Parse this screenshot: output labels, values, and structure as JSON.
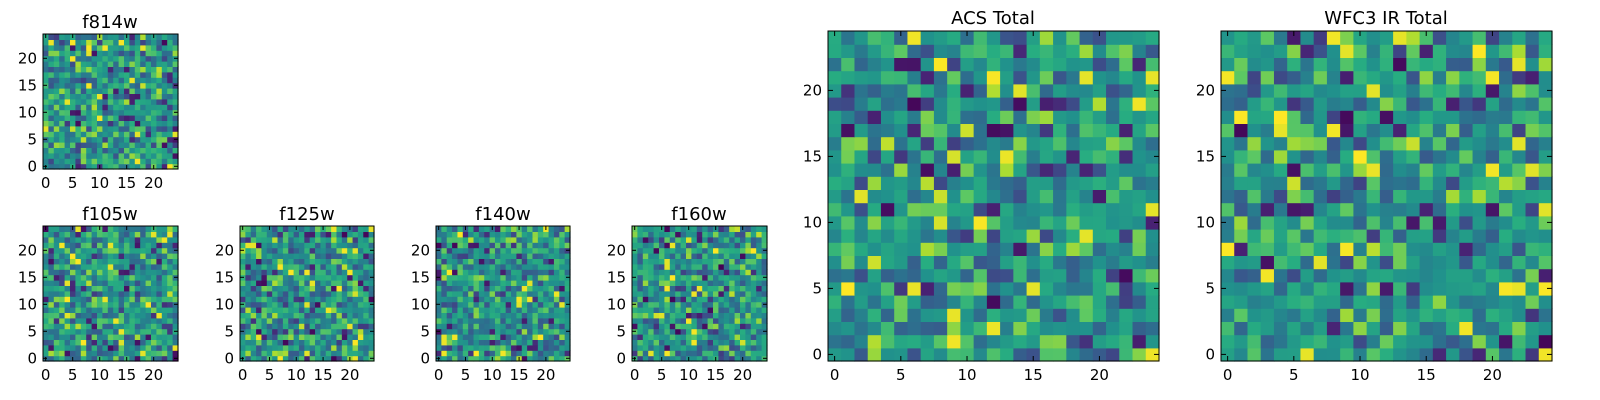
{
  "chart_data": [
    {
      "type": "heatmap",
      "title": "f814w",
      "xticks": [
        "0",
        "5",
        "10",
        "15",
        "20"
      ],
      "yticks": [
        "0",
        "5",
        "10",
        "15",
        "20"
      ],
      "xlim": [
        0,
        25
      ],
      "ylim": [
        0,
        25
      ],
      "colormap": "viridis",
      "grid": false
    },
    {
      "type": "heatmap",
      "title": "f105w",
      "xticks": [
        "0",
        "5",
        "10",
        "15",
        "20"
      ],
      "yticks": [
        "0",
        "5",
        "10",
        "15",
        "20"
      ],
      "xlim": [
        0,
        25
      ],
      "ylim": [
        0,
        25
      ],
      "colormap": "viridis",
      "grid": false
    },
    {
      "type": "heatmap",
      "title": "f125w",
      "xticks": [
        "0",
        "5",
        "10",
        "15",
        "20"
      ],
      "yticks": [
        "0",
        "5",
        "10",
        "15",
        "20"
      ],
      "xlim": [
        0,
        25
      ],
      "ylim": [
        0,
        25
      ],
      "colormap": "viridis",
      "grid": false
    },
    {
      "type": "heatmap",
      "title": "f140w",
      "xticks": [
        "0",
        "5",
        "10",
        "15",
        "20"
      ],
      "yticks": [
        "0",
        "5",
        "10",
        "15",
        "20"
      ],
      "xlim": [
        0,
        25
      ],
      "ylim": [
        0,
        25
      ],
      "colormap": "viridis",
      "grid": false
    },
    {
      "type": "heatmap",
      "title": "f160w",
      "xticks": [
        "0",
        "5",
        "10",
        "15",
        "20"
      ],
      "yticks": [
        "0",
        "5",
        "10",
        "15",
        "20"
      ],
      "xlim": [
        0,
        25
      ],
      "ylim": [
        0,
        25
      ],
      "colormap": "viridis",
      "grid": false
    },
    {
      "type": "heatmap",
      "title": "ACS Total",
      "xticks": [
        "0",
        "5",
        "10",
        "15",
        "20"
      ],
      "yticks": [
        "0",
        "5",
        "10",
        "15",
        "20"
      ],
      "xlim": [
        0,
        25
      ],
      "ylim": [
        0,
        25
      ],
      "colormap": "viridis",
      "grid": false
    },
    {
      "type": "heatmap",
      "title": "WFC3 IR Total",
      "xticks": [
        "0",
        "5",
        "10",
        "15",
        "20"
      ],
      "yticks": [
        "0",
        "5",
        "10",
        "15",
        "20"
      ],
      "xlim": [
        0,
        25
      ],
      "ylim": [
        0,
        25
      ],
      "colormap": "viridis",
      "grid": false
    }
  ]
}
